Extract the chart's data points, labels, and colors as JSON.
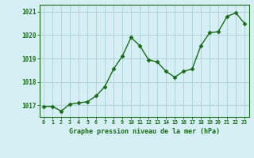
{
  "x": [
    0,
    1,
    2,
    3,
    4,
    5,
    6,
    7,
    8,
    9,
    10,
    11,
    12,
    13,
    14,
    15,
    16,
    17,
    18,
    19,
    20,
    21,
    22,
    23
  ],
  "y": [
    1016.95,
    1016.95,
    1016.75,
    1017.05,
    1017.1,
    1017.15,
    1017.4,
    1017.8,
    1018.55,
    1019.1,
    1019.9,
    1019.55,
    1018.95,
    1018.85,
    1018.45,
    1018.2,
    1018.45,
    1018.55,
    1019.55,
    1020.1,
    1020.15,
    1020.8,
    1020.95,
    1020.5
  ],
  "line_color": "#1a6b1a",
  "bg_color": "#d6eff5",
  "grid_color": "#aed4da",
  "xlabel": "Graphe pression niveau de la mer (hPa)",
  "xlabel_color": "#1a6b1a",
  "tick_color": "#1a6b1a",
  "ylim": [
    1016.5,
    1021.3
  ],
  "yticks": [
    1017,
    1018,
    1019,
    1020,
    1021
  ],
  "xticks": [
    0,
    1,
    2,
    3,
    4,
    5,
    6,
    7,
    8,
    9,
    10,
    11,
    12,
    13,
    14,
    15,
    16,
    17,
    18,
    19,
    20,
    21,
    22,
    23
  ],
  "marker": "D",
  "markersize": 2.5,
  "linewidth": 1.0
}
